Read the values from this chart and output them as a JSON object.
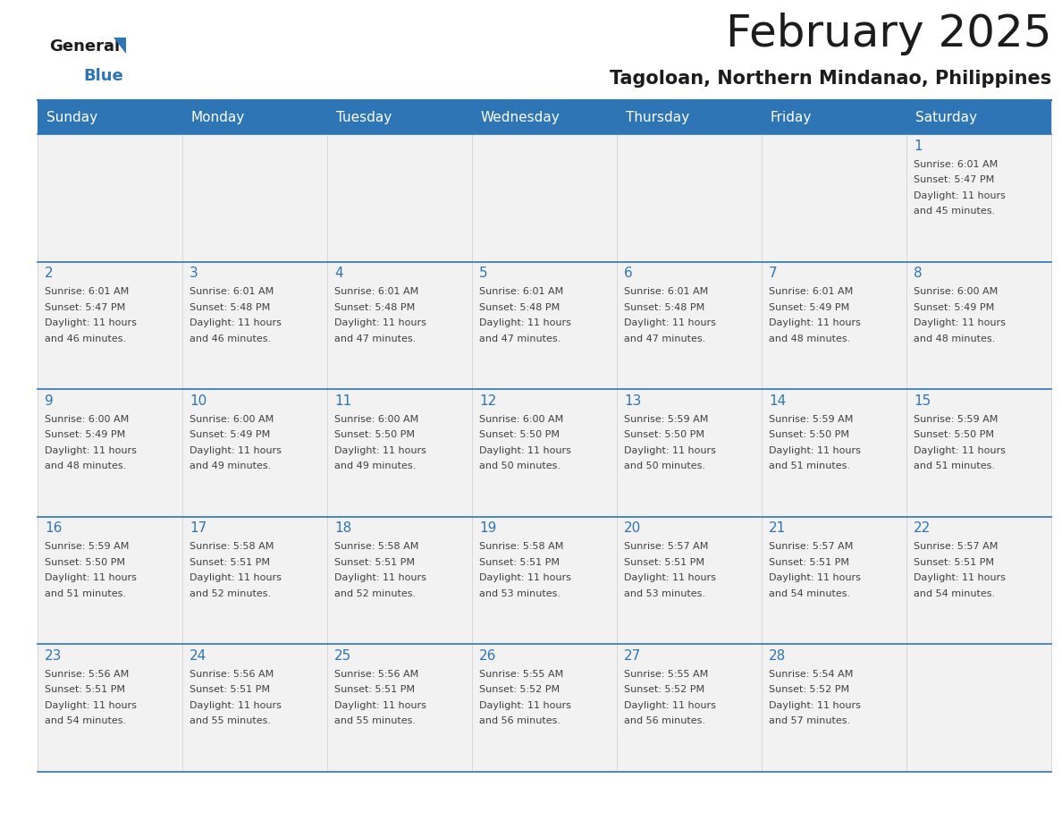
{
  "title": "February 2025",
  "subtitle": "Tagoloan, Northern Mindanao, Philippines",
  "header_bg_color": "#2E75B6",
  "header_text_color": "#FFFFFF",
  "cell_bg_even": "#F2F2F2",
  "cell_bg_odd": "#FFFFFF",
  "day_number_color": "#2E75B6",
  "text_color": "#404040",
  "border_color": "#2E75B6",
  "grid_color": "#CCCCCC",
  "days_of_week": [
    "Sunday",
    "Monday",
    "Tuesday",
    "Wednesday",
    "Thursday",
    "Friday",
    "Saturday"
  ],
  "calendar_data": [
    [
      null,
      null,
      null,
      null,
      null,
      null,
      {
        "day": 1,
        "sunrise": "6:01 AM",
        "sunset": "5:47 PM",
        "daylight": "11 hours and 45 minutes."
      }
    ],
    [
      {
        "day": 2,
        "sunrise": "6:01 AM",
        "sunset": "5:47 PM",
        "daylight": "11 hours and 46 minutes."
      },
      {
        "day": 3,
        "sunrise": "6:01 AM",
        "sunset": "5:48 PM",
        "daylight": "11 hours and 46 minutes."
      },
      {
        "day": 4,
        "sunrise": "6:01 AM",
        "sunset": "5:48 PM",
        "daylight": "11 hours and 47 minutes."
      },
      {
        "day": 5,
        "sunrise": "6:01 AM",
        "sunset": "5:48 PM",
        "daylight": "11 hours and 47 minutes."
      },
      {
        "day": 6,
        "sunrise": "6:01 AM",
        "sunset": "5:48 PM",
        "daylight": "11 hours and 47 minutes."
      },
      {
        "day": 7,
        "sunrise": "6:01 AM",
        "sunset": "5:49 PM",
        "daylight": "11 hours and 48 minutes."
      },
      {
        "day": 8,
        "sunrise": "6:00 AM",
        "sunset": "5:49 PM",
        "daylight": "11 hours and 48 minutes."
      }
    ],
    [
      {
        "day": 9,
        "sunrise": "6:00 AM",
        "sunset": "5:49 PM",
        "daylight": "11 hours and 48 minutes."
      },
      {
        "day": 10,
        "sunrise": "6:00 AM",
        "sunset": "5:49 PM",
        "daylight": "11 hours and 49 minutes."
      },
      {
        "day": 11,
        "sunrise": "6:00 AM",
        "sunset": "5:50 PM",
        "daylight": "11 hours and 49 minutes."
      },
      {
        "day": 12,
        "sunrise": "6:00 AM",
        "sunset": "5:50 PM",
        "daylight": "11 hours and 50 minutes."
      },
      {
        "day": 13,
        "sunrise": "5:59 AM",
        "sunset": "5:50 PM",
        "daylight": "11 hours and 50 minutes."
      },
      {
        "day": 14,
        "sunrise": "5:59 AM",
        "sunset": "5:50 PM",
        "daylight": "11 hours and 51 minutes."
      },
      {
        "day": 15,
        "sunrise": "5:59 AM",
        "sunset": "5:50 PM",
        "daylight": "11 hours and 51 minutes."
      }
    ],
    [
      {
        "day": 16,
        "sunrise": "5:59 AM",
        "sunset": "5:50 PM",
        "daylight": "11 hours and 51 minutes."
      },
      {
        "day": 17,
        "sunrise": "5:58 AM",
        "sunset": "5:51 PM",
        "daylight": "11 hours and 52 minutes."
      },
      {
        "day": 18,
        "sunrise": "5:58 AM",
        "sunset": "5:51 PM",
        "daylight": "11 hours and 52 minutes."
      },
      {
        "day": 19,
        "sunrise": "5:58 AM",
        "sunset": "5:51 PM",
        "daylight": "11 hours and 53 minutes."
      },
      {
        "day": 20,
        "sunrise": "5:57 AM",
        "sunset": "5:51 PM",
        "daylight": "11 hours and 53 minutes."
      },
      {
        "day": 21,
        "sunrise": "5:57 AM",
        "sunset": "5:51 PM",
        "daylight": "11 hours and 54 minutes."
      },
      {
        "day": 22,
        "sunrise": "5:57 AM",
        "sunset": "5:51 PM",
        "daylight": "11 hours and 54 minutes."
      }
    ],
    [
      {
        "day": 23,
        "sunrise": "5:56 AM",
        "sunset": "5:51 PM",
        "daylight": "11 hours and 54 minutes."
      },
      {
        "day": 24,
        "sunrise": "5:56 AM",
        "sunset": "5:51 PM",
        "daylight": "11 hours and 55 minutes."
      },
      {
        "day": 25,
        "sunrise": "5:56 AM",
        "sunset": "5:51 PM",
        "daylight": "11 hours and 55 minutes."
      },
      {
        "day": 26,
        "sunrise": "5:55 AM",
        "sunset": "5:52 PM",
        "daylight": "11 hours and 56 minutes."
      },
      {
        "day": 27,
        "sunrise": "5:55 AM",
        "sunset": "5:52 PM",
        "daylight": "11 hours and 56 minutes."
      },
      {
        "day": 28,
        "sunrise": "5:54 AM",
        "sunset": "5:52 PM",
        "daylight": "11 hours and 57 minutes."
      },
      null
    ]
  ],
  "fig_width": 11.88,
  "fig_height": 9.18,
  "title_fontsize": 36,
  "subtitle_fontsize": 15,
  "header_fontsize": 11,
  "day_num_fontsize": 11,
  "cell_text_fontsize": 8
}
